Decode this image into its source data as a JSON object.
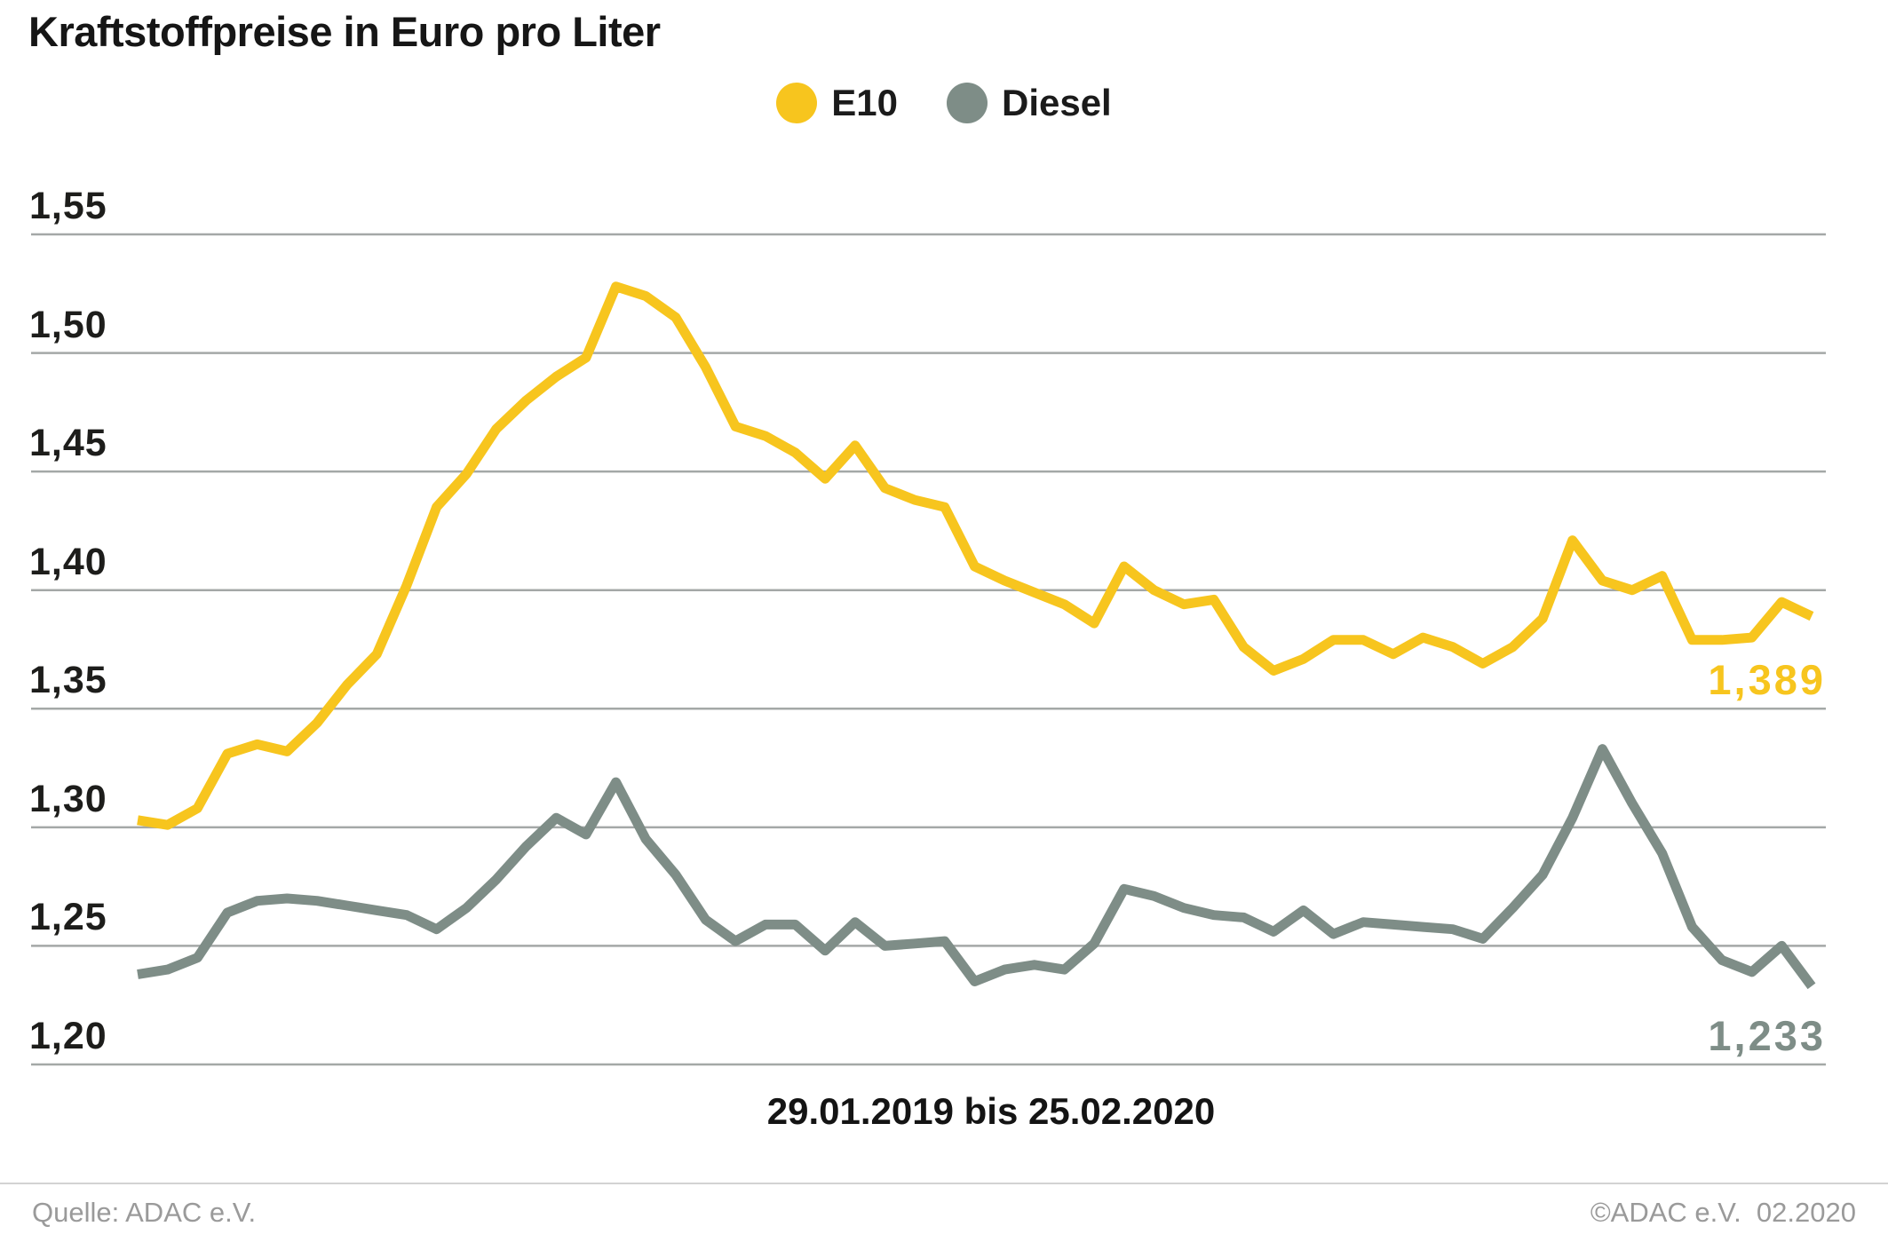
{
  "title": "Kraftstoffpreise in Euro pro Liter",
  "x_caption": "29.01.2019 bis 25.02.2020",
  "footer": {
    "source": "Quelle: ADAC e.V.",
    "copyright": "©ADAC e.V.  02.2020"
  },
  "chart_data": {
    "type": "line",
    "title": "Kraftstoffpreise in Euro pro Liter",
    "xlabel": "29.01.2019 bis 25.02.2020",
    "ylabel": "Euro pro Liter",
    "x_unit": "weekly prices, 57 weeks from 29.01.2019 to 25.02.2020",
    "ylim": [
      1.2,
      1.55
    ],
    "grid": "horizontal",
    "legend_position": "top-center",
    "y_ticks": [
      {
        "label": "1,55",
        "value": 1.55
      },
      {
        "label": "1,50",
        "value": 1.5
      },
      {
        "label": "1,45",
        "value": 1.45
      },
      {
        "label": "1,40",
        "value": 1.4
      },
      {
        "label": "1,35",
        "value": 1.35
      },
      {
        "label": "1,30",
        "value": 1.3
      },
      {
        "label": "1,25",
        "value": 1.25
      },
      {
        "label": "1,20",
        "value": 1.2
      }
    ],
    "series": [
      {
        "name": "E10",
        "color": "#F7C51E",
        "end_label": "1,389",
        "values": [
          1.303,
          1.301,
          1.308,
          1.331,
          1.335,
          1.332,
          1.344,
          1.36,
          1.373,
          1.402,
          1.435,
          1.449,
          1.468,
          1.48,
          1.49,
          1.498,
          1.528,
          1.524,
          1.515,
          1.494,
          1.469,
          1.465,
          1.458,
          1.447,
          1.461,
          1.443,
          1.438,
          1.435,
          1.41,
          1.404,
          1.399,
          1.394,
          1.386,
          1.41,
          1.4,
          1.394,
          1.396,
          1.376,
          1.366,
          1.371,
          1.379,
          1.379,
          1.373,
          1.38,
          1.376,
          1.369,
          1.376,
          1.388,
          1.421,
          1.404,
          1.4,
          1.406,
          1.379,
          1.379,
          1.38,
          1.395,
          1.389
        ]
      },
      {
        "name": "Diesel",
        "color": "#7E8D87",
        "end_label": "1,233",
        "values": [
          1.238,
          1.24,
          1.245,
          1.264,
          1.269,
          1.27,
          1.269,
          1.267,
          1.265,
          1.263,
          1.257,
          1.266,
          1.278,
          1.292,
          1.304,
          1.297,
          1.319,
          1.295,
          1.28,
          1.261,
          1.252,
          1.259,
          1.259,
          1.248,
          1.26,
          1.25,
          1.251,
          1.252,
          1.235,
          1.24,
          1.242,
          1.24,
          1.251,
          1.274,
          1.271,
          1.266,
          1.263,
          1.262,
          1.256,
          1.265,
          1.255,
          1.26,
          1.259,
          1.258,
          1.257,
          1.253,
          1.266,
          1.28,
          1.304,
          1.333,
          1.31,
          1.289,
          1.258,
          1.244,
          1.239,
          1.25,
          1.233
        ]
      }
    ]
  }
}
